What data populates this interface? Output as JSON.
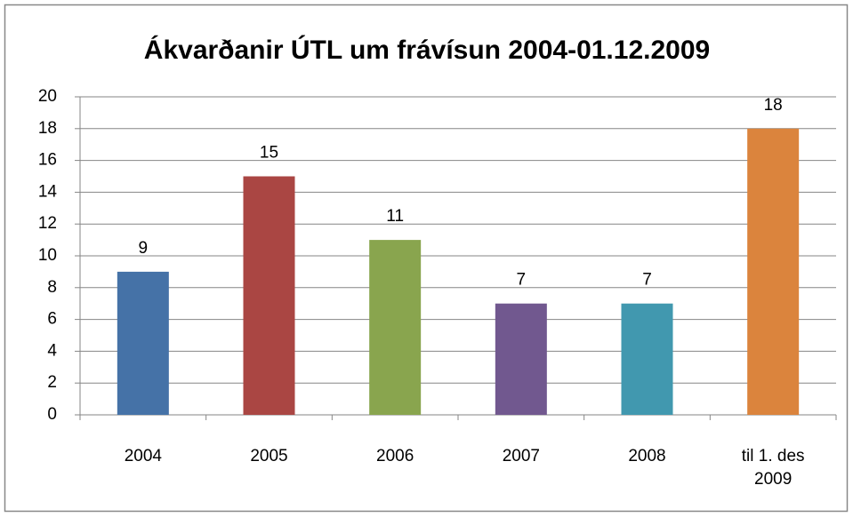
{
  "chart_data": {
    "type": "bar",
    "title": "Ákvarðanir ÚTL um frávísun 2004-01.12.2009",
    "categories": [
      "2004",
      "2005",
      "2006",
      "2007",
      "2008",
      "til 1. des 2009"
    ],
    "values": [
      9,
      15,
      11,
      7,
      7,
      18
    ],
    "colors": [
      "#4572a7",
      "#aa4643",
      "#89a54e",
      "#71588f",
      "#4198af",
      "#db843d"
    ],
    "ylim": [
      0,
      20
    ],
    "yticks": [
      0,
      2,
      4,
      6,
      8,
      10,
      12,
      14,
      16,
      18,
      20
    ],
    "grid": true
  }
}
